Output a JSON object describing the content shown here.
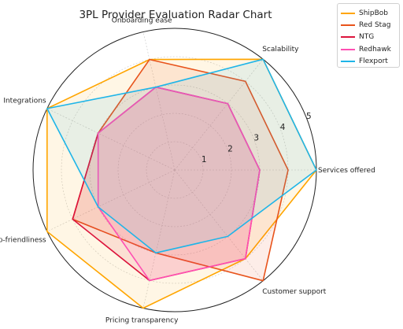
{
  "chart_data": {
    "type": "radar",
    "title": "3PL Provider Evaluation Radar Chart",
    "axes": [
      "Services offered",
      "Scalability",
      "Onboarding ease",
      "Integrations",
      "Startup-friendliness",
      "Pricing transparency",
      "Customer support"
    ],
    "radial_ticks": [
      1,
      2,
      3,
      4,
      5
    ],
    "rlim": [
      0,
      5
    ],
    "grid": true,
    "legend_position": "top-right",
    "series": [
      {
        "name": "ShipBob",
        "color": "#ffa500",
        "values": [
          5,
          5,
          4,
          5,
          5,
          5,
          4
        ]
      },
      {
        "name": "Red Stag",
        "color": "#e8531b",
        "values": [
          4,
          4,
          4,
          3,
          4,
          3,
          5
        ]
      },
      {
        "name": "NTG",
        "color": "#dc143c",
        "values": [
          3,
          3,
          3,
          3,
          4,
          4,
          4
        ]
      },
      {
        "name": "Redhawk",
        "color": "#ff4fb3",
        "values": [
          3,
          3,
          3,
          3,
          3,
          4,
          4
        ]
      },
      {
        "name": "Flexport",
        "color": "#1fb5e8",
        "values": [
          5,
          5,
          3,
          5,
          3,
          3,
          3
        ]
      }
    ]
  }
}
